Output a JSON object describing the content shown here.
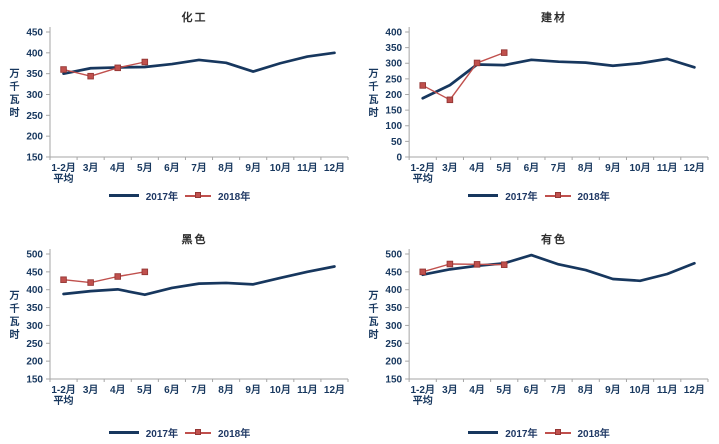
{
  "page": {
    "background": "#ffffff"
  },
  "colors": {
    "series_2017": "#17375E",
    "series_2018": "#C0504D",
    "marker_border": "#943634",
    "axis_line": "#A6A6A6",
    "tick_label": "#17375E",
    "legend_text": "#1F3864",
    "title_text": "#2e2e2e"
  },
  "legend": {
    "label_2017": "2017年",
    "label_2018": "2018年"
  },
  "chart_data": [
    {
      "type": "line",
      "title": "化工",
      "ylabel": "万千瓦时",
      "xlabel": "",
      "categories": [
        "1-2月\n平均",
        "3月",
        "4月",
        "5月",
        "6月",
        "7月",
        "8月",
        "9月",
        "10月",
        "11月",
        "12月"
      ],
      "ylim": [
        150,
        450
      ],
      "ytick_step": 50,
      "grid": false,
      "legend_position": "bottom",
      "series": [
        {
          "name": "2017年",
          "color": "#17375E",
          "marker": false,
          "values": [
            350,
            363,
            365,
            366,
            373,
            383,
            376,
            355,
            375,
            391,
            400
          ]
        },
        {
          "name": "2018年",
          "color": "#C0504D",
          "marker": true,
          "values": [
            360,
            344,
            364,
            378,
            null,
            null,
            null,
            null,
            null,
            null,
            null
          ]
        }
      ]
    },
    {
      "type": "line",
      "title": "建材",
      "ylabel": "万千瓦时",
      "xlabel": "",
      "categories": [
        "1-2月\n平均",
        "3月",
        "4月",
        "5月",
        "6月",
        "7月",
        "8月",
        "9月",
        "10月",
        "11月",
        "12月"
      ],
      "ylim": [
        0,
        400
      ],
      "ytick_step": 50,
      "grid": false,
      "legend_position": "bottom",
      "series": [
        {
          "name": "2017年",
          "color": "#17375E",
          "marker": false,
          "values": [
            188,
            230,
            296,
            294,
            311,
            305,
            302,
            292,
            300,
            314,
            287
          ]
        },
        {
          "name": "2018年",
          "color": "#C0504D",
          "marker": true,
          "values": [
            229,
            183,
            301,
            334,
            null,
            null,
            null,
            null,
            null,
            null,
            null
          ]
        }
      ]
    },
    {
      "type": "line",
      "title": "黑色",
      "ylabel": "万千瓦时",
      "xlabel": "",
      "categories": [
        "1-2月\n平均",
        "3月",
        "4月",
        "5月",
        "6月",
        "7月",
        "8月",
        "9月",
        "10月",
        "11月",
        "12月"
      ],
      "ylim": [
        150,
        500
      ],
      "ytick_step": 50,
      "grid": false,
      "legend_position": "bottom",
      "series": [
        {
          "name": "2017年",
          "color": "#17375E",
          "marker": false,
          "values": [
            388,
            396,
            401,
            386,
            405,
            417,
            419,
            415,
            433,
            450,
            465
          ]
        },
        {
          "name": "2018年",
          "color": "#C0504D",
          "marker": true,
          "values": [
            428,
            420,
            437,
            450,
            null,
            null,
            null,
            null,
            null,
            null,
            null
          ]
        }
      ]
    },
    {
      "type": "line",
      "title": "有色",
      "ylabel": "万千瓦时",
      "xlabel": "",
      "categories": [
        "1-2月\n平均",
        "3月",
        "4月",
        "5月",
        "6月",
        "7月",
        "8月",
        "9月",
        "10月",
        "11月",
        "12月"
      ],
      "ylim": [
        150,
        500
      ],
      "ytick_step": 50,
      "grid": false,
      "legend_position": "bottom",
      "series": [
        {
          "name": "2017年",
          "color": "#17375E",
          "marker": false,
          "values": [
            442,
            457,
            467,
            474,
            497,
            471,
            455,
            430,
            425,
            444,
            474
          ]
        },
        {
          "name": "2018年",
          "color": "#C0504D",
          "marker": true,
          "values": [
            450,
            472,
            471,
            470,
            null,
            null,
            null,
            null,
            null,
            null,
            null
          ]
        }
      ]
    }
  ]
}
